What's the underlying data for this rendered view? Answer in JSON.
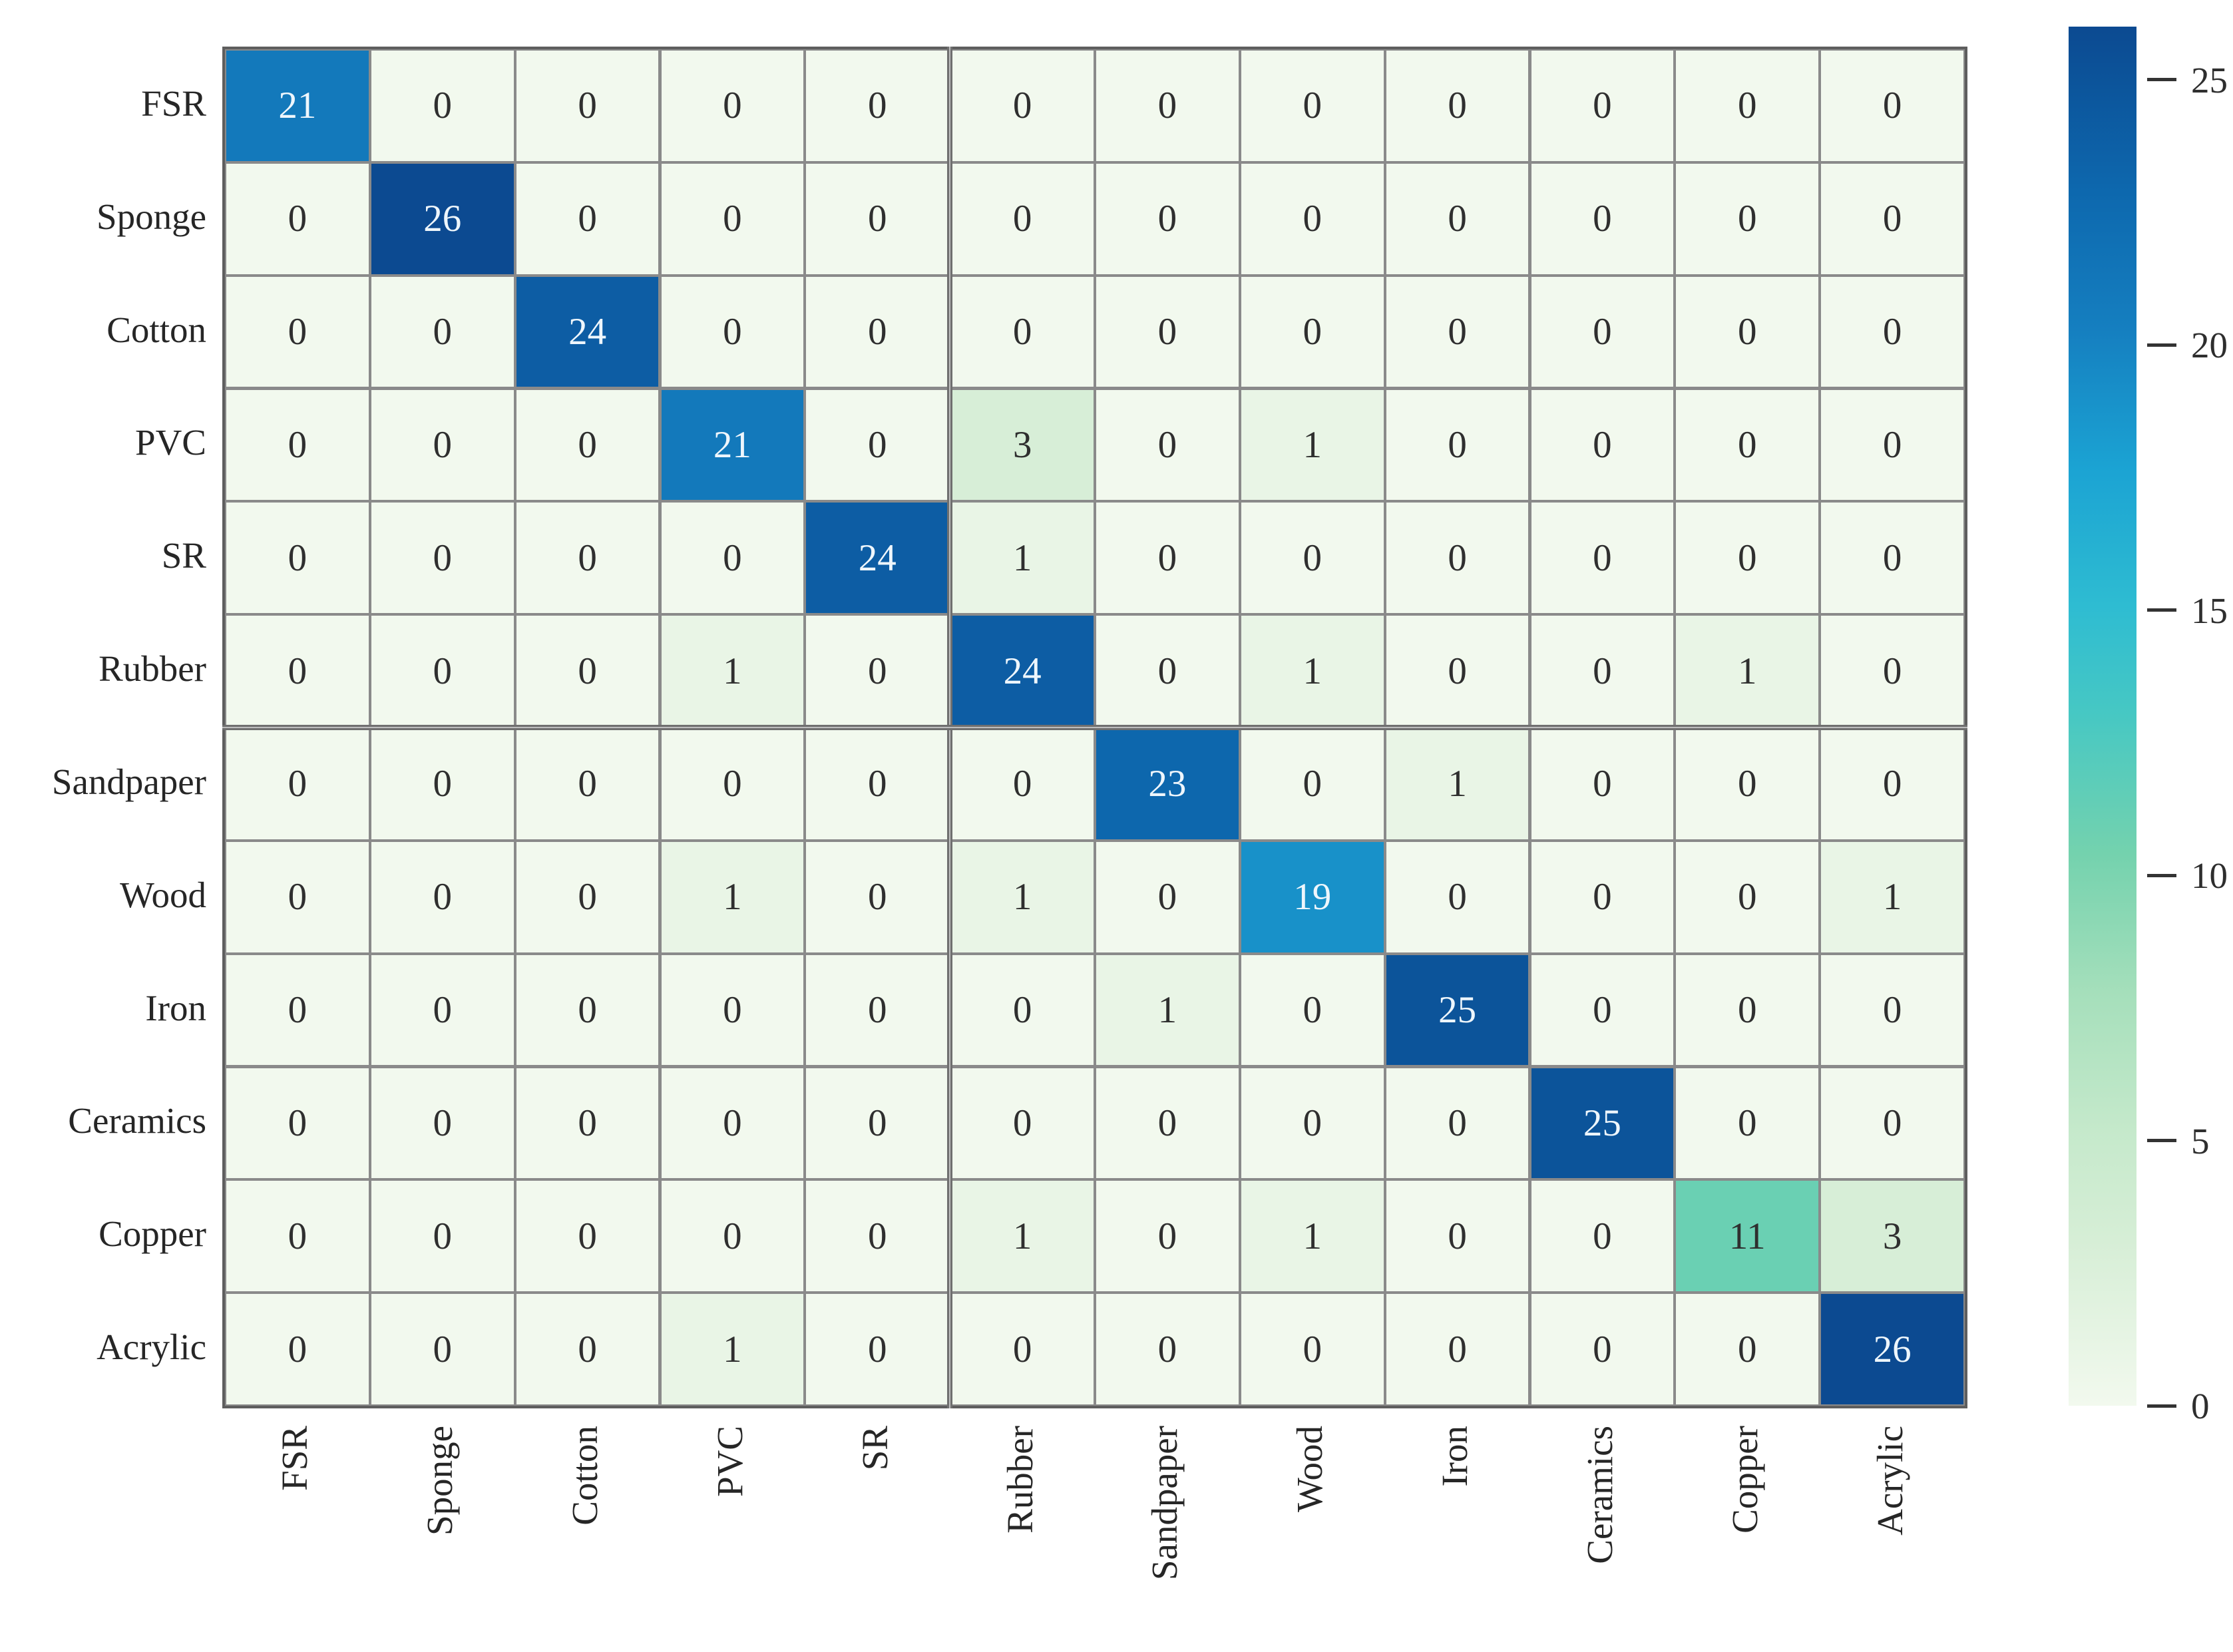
{
  "chart_data": {
    "type": "heatmap",
    "title": "",
    "categories": [
      "FSR",
      "Sponge",
      "Cotton",
      "PVC",
      "SR",
      "Rubber",
      "Sandpaper",
      "Wood",
      "Iron",
      "Ceramics",
      "Copper",
      "Acrylic"
    ],
    "x_tick_labels": [
      "FSR",
      "Sponge",
      "Cotton",
      "PVC",
      "SR",
      "Rubber",
      "Sandpaper",
      "Wood",
      "Iron",
      "Ceramics",
      "Copper",
      "Acrylic"
    ],
    "y_tick_labels": [
      "FSR",
      "Sponge",
      "Cotton",
      "PVC",
      "SR",
      "Rubber",
      "Sandpaper",
      "Wood",
      "Iron",
      "Ceramics",
      "Copper",
      "Acrylic"
    ],
    "matrix": [
      [
        21,
        0,
        0,
        0,
        0,
        0,
        0,
        0,
        0,
        0,
        0,
        0
      ],
      [
        0,
        26,
        0,
        0,
        0,
        0,
        0,
        0,
        0,
        0,
        0,
        0
      ],
      [
        0,
        0,
        24,
        0,
        0,
        0,
        0,
        0,
        0,
        0,
        0,
        0
      ],
      [
        0,
        0,
        0,
        21,
        0,
        3,
        0,
        1,
        0,
        0,
        0,
        0
      ],
      [
        0,
        0,
        0,
        0,
        24,
        1,
        0,
        0,
        0,
        0,
        0,
        0
      ],
      [
        0,
        0,
        0,
        1,
        0,
        24,
        0,
        1,
        0,
        0,
        1,
        0
      ],
      [
        0,
        0,
        0,
        0,
        0,
        0,
        23,
        0,
        1,
        0,
        0,
        0
      ],
      [
        0,
        0,
        0,
        1,
        0,
        1,
        0,
        19,
        0,
        0,
        0,
        1
      ],
      [
        0,
        0,
        0,
        0,
        0,
        0,
        1,
        0,
        25,
        0,
        0,
        0
      ],
      [
        0,
        0,
        0,
        0,
        0,
        0,
        0,
        0,
        0,
        25,
        0,
        0
      ],
      [
        0,
        0,
        0,
        0,
        0,
        1,
        0,
        1,
        0,
        0,
        11,
        3
      ],
      [
        0,
        0,
        0,
        1,
        0,
        0,
        0,
        0,
        0,
        0,
        0,
        26
      ]
    ],
    "vmin": 0,
    "vmax": 26,
    "colorbar_ticks": [
      0,
      5,
      10,
      15,
      20,
      25
    ],
    "colorbar_position": "right",
    "grid": true,
    "colormap_stops": [
      [
        0.0,
        "#f2f9ee"
      ],
      [
        0.12,
        "#d6eed6"
      ],
      [
        0.2,
        "#c5e9cb"
      ],
      [
        0.3,
        "#a5dfbb"
      ],
      [
        0.4,
        "#74d2ae"
      ],
      [
        0.5,
        "#47c8c3"
      ],
      [
        0.58,
        "#2ebcd2"
      ],
      [
        0.68,
        "#1ba3d3"
      ],
      [
        0.78,
        "#157fc0"
      ],
      [
        0.88,
        "#0d68ae"
      ],
      [
        1.0,
        "#0c4a91"
      ]
    ],
    "cell_text_color_low": "#2f2f2f",
    "cell_text_color_high": "#eef6fc",
    "white_text_threshold": 15,
    "grid_line_color": "#8a8a8a",
    "outer_border_color": "#5e5e5e",
    "block_divider_after_col": 5,
    "block_divider_after_row": 6
  }
}
